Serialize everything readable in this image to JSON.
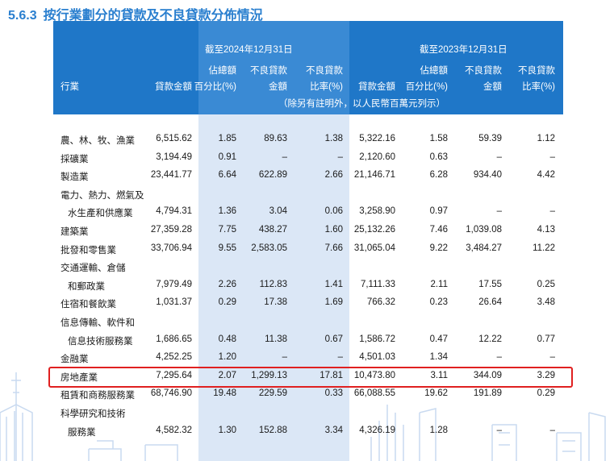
{
  "heading": {
    "number": "5.6.3",
    "title": "按行業劃分的貸款及不良貸款分佈情況"
  },
  "header": {
    "period_2024": "截至2024年12月31日",
    "period_2023": "截至2023年12月31日",
    "col_industry": "行業",
    "col_loan_amount_2024": "貸款金額",
    "col_share_line1_2024": "佔總額",
    "col_share_line2_2024": "百分比(%)",
    "col_npl_line1_2024": "不良貸款",
    "col_npl_line2_2024": "金額",
    "col_nplratio_line1_2024": "不良貸款",
    "col_nplratio_line2_2024": "比率(%)",
    "col_loan_amount_2023": "貸款金額",
    "col_share_line1_2023": "佔總額",
    "col_share_line2_2023": "百分比(%)",
    "col_npl_line1_2023": "不良貸款",
    "col_npl_line2_2023": "金額",
    "col_nplratio_line1_2023": "不良貸款",
    "col_nplratio_line2_2023": "比率(%)",
    "unit_note": "（除另有註明外，以人民幣百萬元列示）"
  },
  "rows": [
    {
      "industry": "農、林、牧、漁業",
      "loan_2024": "6,515.62",
      "share_2024": "1.85",
      "npl_2024": "89.63",
      "ratio_2024": "1.38",
      "loan_2023": "5,322.16",
      "share_2023": "1.58",
      "npl_2023": "59.39",
      "ratio_2023": "1.12"
    },
    {
      "industry": "採礦業",
      "loan_2024": "3,194.49",
      "share_2024": "0.91",
      "npl_2024": "–",
      "ratio_2024": "–",
      "loan_2023": "2,120.60",
      "share_2023": "0.63",
      "npl_2023": "–",
      "ratio_2023": "–"
    },
    {
      "industry": "製造業",
      "loan_2024": "23,441.77",
      "share_2024": "6.64",
      "npl_2024": "622.89",
      "ratio_2024": "2.66",
      "loan_2023": "21,146.71",
      "share_2023": "6.28",
      "npl_2023": "934.40",
      "ratio_2023": "4.42"
    },
    {
      "industry": "電力、熱力、燃氣及",
      "loan_2024": "",
      "share_2024": "",
      "npl_2024": "",
      "ratio_2024": "",
      "loan_2023": "",
      "share_2023": "",
      "npl_2023": "",
      "ratio_2023": ""
    },
    {
      "industry": "水生產和供應業",
      "indent": true,
      "loan_2024": "4,794.31",
      "share_2024": "1.36",
      "npl_2024": "3.04",
      "ratio_2024": "0.06",
      "loan_2023": "3,258.90",
      "share_2023": "0.97",
      "npl_2023": "–",
      "ratio_2023": "–"
    },
    {
      "industry": "建築業",
      "loan_2024": "27,359.28",
      "share_2024": "7.75",
      "npl_2024": "438.27",
      "ratio_2024": "1.60",
      "loan_2023": "25,132.26",
      "share_2023": "7.46",
      "npl_2023": "1,039.08",
      "ratio_2023": "4.13"
    },
    {
      "industry": "批發和零售業",
      "loan_2024": "33,706.94",
      "share_2024": "9.55",
      "npl_2024": "2,583.05",
      "ratio_2024": "7.66",
      "loan_2023": "31,065.04",
      "share_2023": "9.22",
      "npl_2023": "3,484.27",
      "ratio_2023": "11.22"
    },
    {
      "industry": "交通運輸、倉儲",
      "loan_2024": "",
      "share_2024": "",
      "npl_2024": "",
      "ratio_2024": "",
      "loan_2023": "",
      "share_2023": "",
      "npl_2023": "",
      "ratio_2023": ""
    },
    {
      "industry": "和郵政業",
      "indent": true,
      "loan_2024": "7,979.49",
      "share_2024": "2.26",
      "npl_2024": "112.83",
      "ratio_2024": "1.41",
      "loan_2023": "7,111.33",
      "share_2023": "2.11",
      "npl_2023": "17.55",
      "ratio_2023": "0.25"
    },
    {
      "industry": "住宿和餐飲業",
      "loan_2024": "1,031.37",
      "share_2024": "0.29",
      "npl_2024": "17.38",
      "ratio_2024": "1.69",
      "loan_2023": "766.32",
      "share_2023": "0.23",
      "npl_2023": "26.64",
      "ratio_2023": "3.48"
    },
    {
      "industry": "信息傳輸、軟件和",
      "loan_2024": "",
      "share_2024": "",
      "npl_2024": "",
      "ratio_2024": "",
      "loan_2023": "",
      "share_2023": "",
      "npl_2023": "",
      "ratio_2023": ""
    },
    {
      "industry": "信息技術服務業",
      "indent": true,
      "loan_2024": "1,686.65",
      "share_2024": "0.48",
      "npl_2024": "11.38",
      "ratio_2024": "0.67",
      "loan_2023": "1,586.72",
      "share_2023": "0.47",
      "npl_2023": "12.22",
      "ratio_2023": "0.77"
    },
    {
      "industry": "金融業",
      "loan_2024": "4,252.25",
      "share_2024": "1.20",
      "npl_2024": "–",
      "ratio_2024": "–",
      "loan_2023": "4,501.03",
      "share_2023": "1.34",
      "npl_2023": "–",
      "ratio_2023": "–"
    },
    {
      "industry": "房地產業",
      "loan_2024": "7,295.64",
      "share_2024": "2.07",
      "npl_2024": "1,299.13",
      "ratio_2024": "17.81",
      "loan_2023": "10,473.80",
      "share_2023": "3.11",
      "npl_2023": "344.09",
      "ratio_2023": "3.29"
    },
    {
      "industry": "租賃和商務服務業",
      "loan_2024": "68,746.90",
      "share_2024": "19.48",
      "npl_2024": "229.59",
      "ratio_2024": "0.33",
      "loan_2023": "66,088.55",
      "share_2023": "19.62",
      "npl_2023": "191.89",
      "ratio_2023": "0.29"
    },
    {
      "industry": "科學研究和技術",
      "loan_2024": "",
      "share_2024": "",
      "npl_2024": "",
      "ratio_2024": "",
      "loan_2023": "",
      "share_2023": "",
      "npl_2023": "",
      "ratio_2023": ""
    },
    {
      "industry": "服務業",
      "indent": true,
      "loan_2024": "4,582.32",
      "share_2024": "1.30",
      "npl_2024": "152.88",
      "ratio_2024": "3.34",
      "loan_2023": "4,326.19",
      "share_2023": "1.28",
      "npl_2023": "–",
      "ratio_2023": "–"
    }
  ],
  "colors": {
    "header_blue": "#1f77c8",
    "highlight_blue": "#3a8ad4",
    "column_shade": "#dbe7f6",
    "heading_blue": "#2a7fcf",
    "highlight_border": "#e02020"
  }
}
